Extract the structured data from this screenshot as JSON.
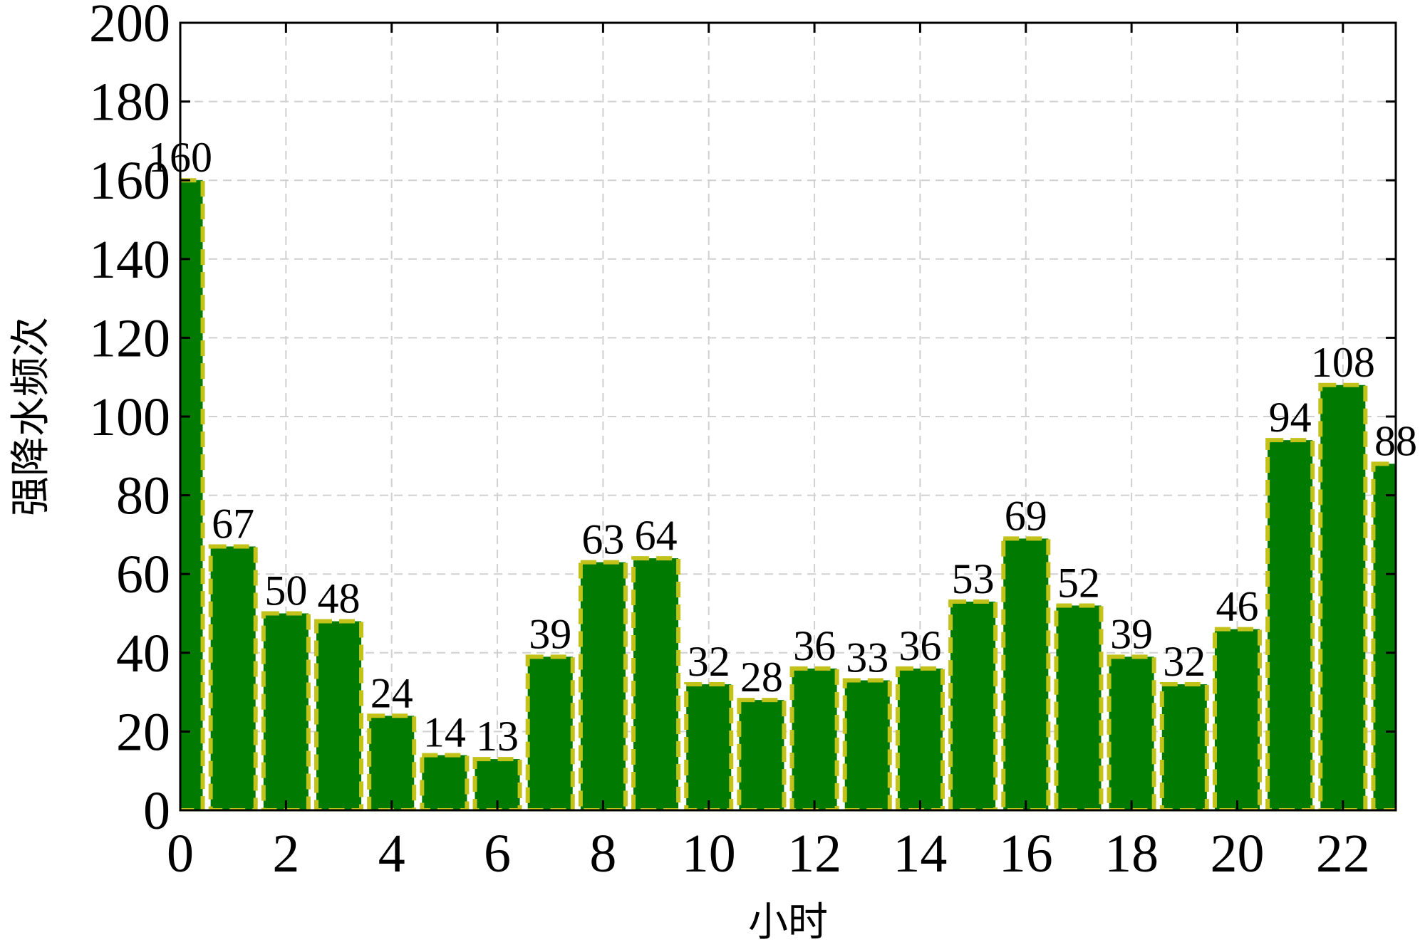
{
  "chart_data": {
    "type": "bar",
    "x": [
      0,
      1,
      2,
      3,
      4,
      5,
      6,
      7,
      8,
      9,
      10,
      11,
      12,
      13,
      14,
      15,
      16,
      17,
      18,
      19,
      20,
      21,
      22,
      23
    ],
    "values": [
      160,
      67,
      50,
      48,
      24,
      14,
      13,
      39,
      63,
      64,
      32,
      28,
      36,
      33,
      36,
      53,
      69,
      52,
      39,
      32,
      46,
      94,
      108,
      88
    ],
    "xlabel": "小时",
    "ylabel": "强降水频次",
    "color": "#007a00",
    "edgecolor": "#c2c21a",
    "xlim": [
      0,
      23
    ],
    "xticks": [
      0,
      2,
      4,
      6,
      8,
      10,
      12,
      14,
      16,
      18,
      20,
      22
    ],
    "ylim": [
      0,
      200
    ],
    "yticks": [
      0,
      20,
      40,
      60,
      80,
      100,
      120,
      140,
      160,
      180,
      200
    ],
    "grid": true
  }
}
